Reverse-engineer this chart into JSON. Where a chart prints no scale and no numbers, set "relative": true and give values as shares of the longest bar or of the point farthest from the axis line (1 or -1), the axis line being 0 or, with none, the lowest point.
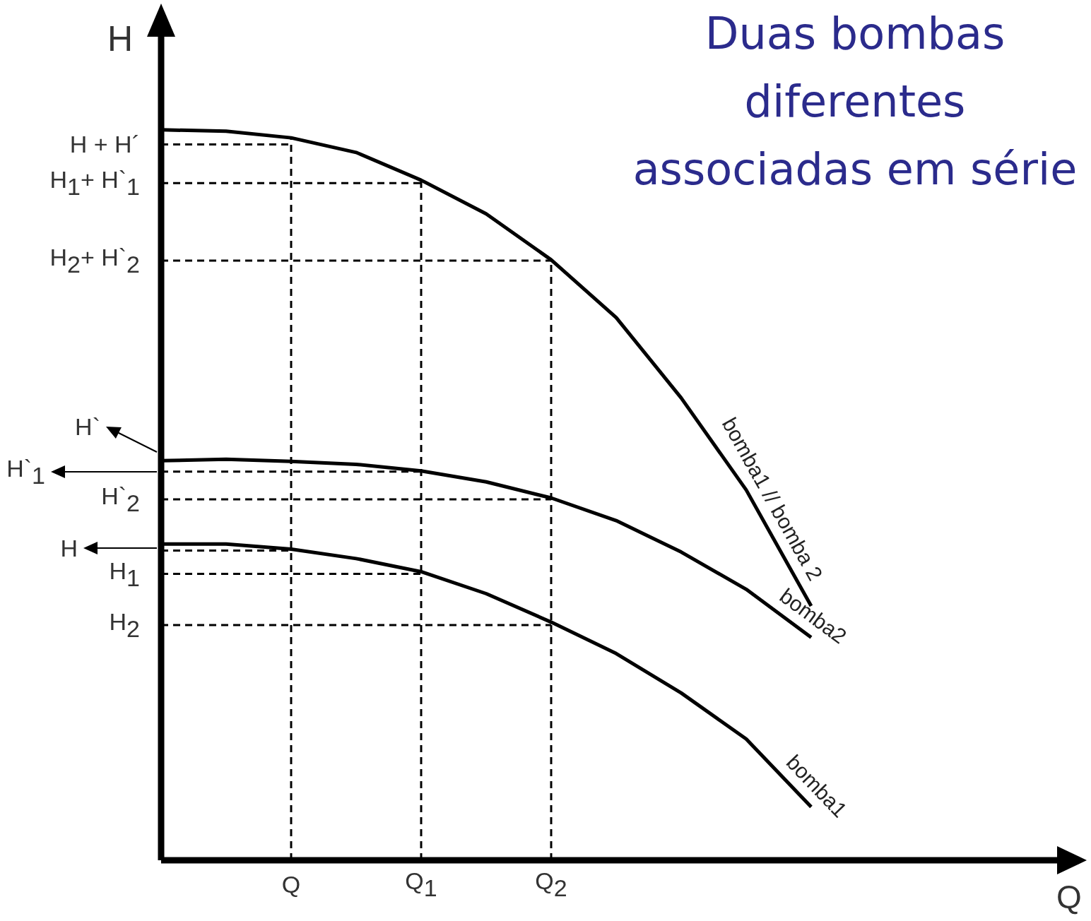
{
  "chart_data": {
    "type": "line",
    "title": "Duas bombas diferentes associadas em série",
    "xlabel": "Q",
    "ylabel": "H",
    "relative": true,
    "marker": "none",
    "legend": false,
    "grid": false,
    "categories": [
      null,
      null,
      "Q",
      null,
      "Q$_{1}$",
      null,
      "Q$_{2}$",
      null,
      null,
      null,
      null,
      null,
      null,
      null,
      null
    ],
    "series": [
      {
        "name": "bomba1 // bomba 2",
        "color": "#000000",
        "values": [
          1.0,
          0.998,
          0.989,
          0.969,
          0.931,
          0.885,
          0.822,
          0.743,
          0.633,
          0.507,
          0.348,
          null,
          null,
          null,
          null
        ]
      },
      {
        "name": "bomba2",
        "color": "#000000",
        "values": [
          0.547,
          0.549,
          0.546,
          0.542,
          0.533,
          0.518,
          0.496,
          0.465,
          0.422,
          0.371,
          0.305,
          null,
          null,
          null,
          null
        ]
      },
      {
        "name": "bomba1",
        "color": "#000000",
        "values": [
          0.433,
          0.433,
          0.426,
          0.413,
          0.395,
          0.365,
          0.326,
          0.283,
          0.229,
          0.166,
          0.073,
          null,
          null,
          null,
          null
        ]
      }
    ],
    "ref_lines": [
      {
        "axis": "x",
        "value": "Q",
        "line_style": "dashed"
      },
      {
        "axis": "x",
        "value": "Q$_{1}$",
        "line_style": "dashed"
      },
      {
        "axis": "x",
        "value": "Q$_{2}$",
        "line_style": "dashed"
      },
      {
        "axis": "y",
        "value": 0.98,
        "label": "H + H´",
        "line_style": "dashed"
      },
      {
        "axis": "y",
        "value": 0.927,
        "label": "H$_{1}$+ H`$_{1}$",
        "line_style": "dashed"
      },
      {
        "axis": "y",
        "value": 0.821,
        "label": "H$_{2}$+ H`$_{2}$",
        "line_style": "dashed"
      },
      {
        "axis": "y",
        "value": 0.532,
        "line_style": "dashed"
      },
      {
        "axis": "y",
        "value": 0.494,
        "label": "H`$_{2}$",
        "line_style": "dashed"
      },
      {
        "axis": "y",
        "value": 0.424,
        "line_style": "dashed"
      },
      {
        "axis": "y",
        "value": 0.392,
        "label": "H$_{1}$",
        "line_style": "dashed"
      },
      {
        "axis": "y",
        "value": 0.322,
        "label": "H$_{2}$",
        "line_style": "dashed"
      }
    ],
    "annotations": [
      "H`",
      "H`$_{1}$",
      "H"
    ]
  }
}
